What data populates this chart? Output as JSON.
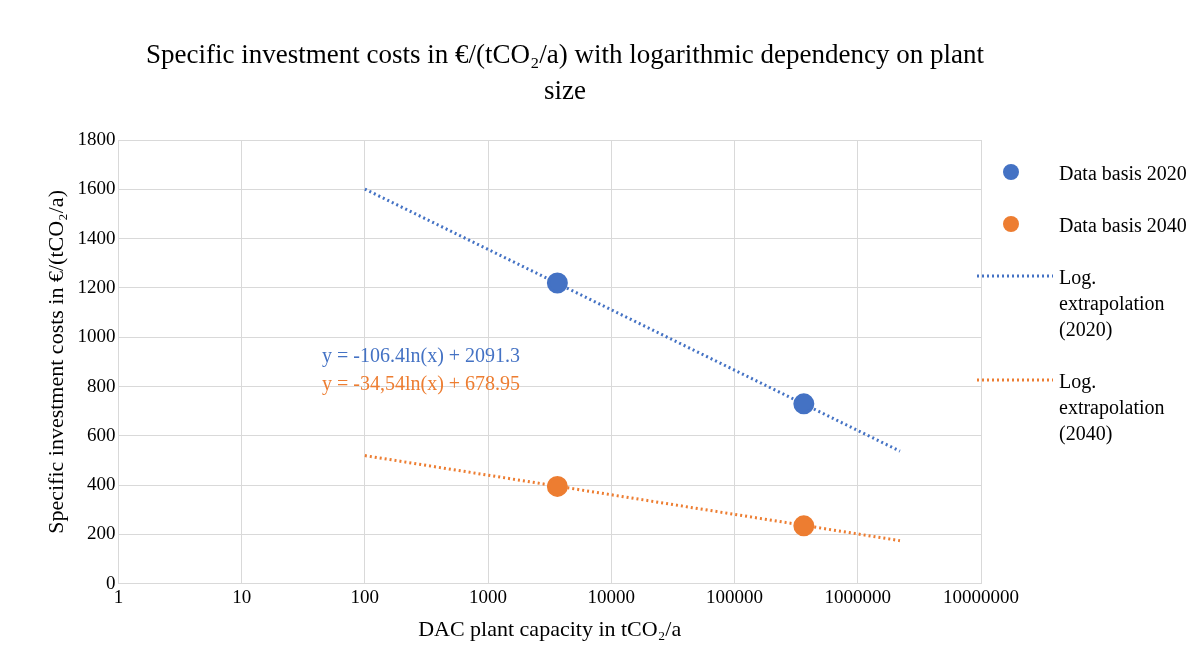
{
  "chart_data": {
    "type": "scatter",
    "title": "Specific investment costs in €/(tCO₂/a) with logarithmic dependency on plant size",
    "xlabel": "DAC plant capacity in tCO₂/a",
    "ylabel": "Specific investment costs in €/(tCO₂/a)",
    "log": "x",
    "xlim": [
      1,
      10000000
    ],
    "xticks": [
      1,
      10,
      100,
      1000,
      10000,
      100000,
      1000000,
      10000000
    ],
    "ylim": [
      0,
      1800
    ],
    "yticks": [
      0,
      200,
      400,
      600,
      800,
      1000,
      1200,
      1400,
      1600,
      1800
    ],
    "grid": true,
    "legend": "right",
    "marker": "circle",
    "series": [
      {
        "name": "Data basis 2020",
        "type": "scatter",
        "color": "#4472c4",
        "x": [
          3650,
          365000
        ],
        "values": [
          1220,
          730
        ]
      },
      {
        "name": "Data basis 2040",
        "type": "scatter",
        "color": "#ed7d31",
        "x": [
          3650,
          365000
        ],
        "values": [
          395,
          235
        ]
      },
      {
        "name": "Log. extrapolation (2020)",
        "type": "line",
        "line_style": "dotted",
        "marker": "none",
        "color": "#4472c4",
        "x": [
          100,
          2200000
        ],
        "values": [
          1601,
          538
        ]
      },
      {
        "name": "Log. extrapolation (2040)",
        "type": "line",
        "line_style": "dotted",
        "marker": "none",
        "color": "#ed7d31",
        "x": [
          100,
          2200000
        ],
        "values": [
          520,
          175
        ]
      }
    ],
    "annotations": [
      "y = -106.4ln(x) + 2091.3",
      "y = -34,54ln(x) + 678.95"
    ]
  }
}
